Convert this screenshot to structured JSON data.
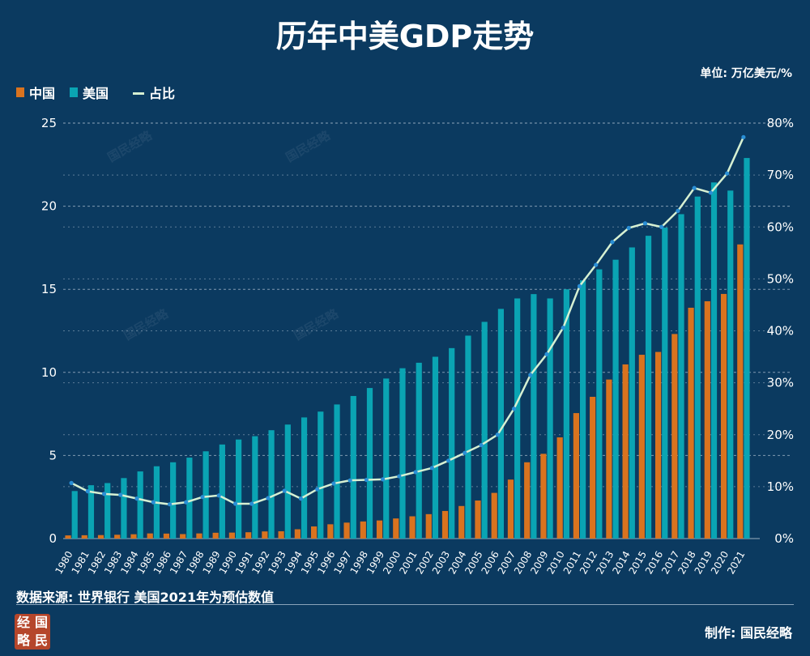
{
  "title": "历年中美GDP走势",
  "unit": "单位: 万亿美元/%",
  "legend": {
    "china": "中国",
    "usa": "美国",
    "ratio": "占比"
  },
  "source": "数据来源: 世界银行  美国2021年为预估数值",
  "maker": "制作: 国民经略",
  "logo_chars": [
    "经",
    "国",
    "略",
    "民"
  ],
  "watermark": "国民经略",
  "colors": {
    "background": "#0b3a60",
    "china": "#d9731f",
    "usa": "#0aa4b3",
    "ratio": "#d6f0d2",
    "ratio_marker": "#2a8fd6",
    "grid": "#9fb4c6"
  },
  "chart_data": {
    "type": "bar",
    "title": "历年中美GDP走势",
    "categories": [
      "1980",
      "1981",
      "1982",
      "1983",
      "1984",
      "1985",
      "1986",
      "1987",
      "1988",
      "1989",
      "1990",
      "1991",
      "1992",
      "1993",
      "1994",
      "1995",
      "1996",
      "1997",
      "1998",
      "1999",
      "2000",
      "2001",
      "2002",
      "2003",
      "2004",
      "2005",
      "2006",
      "2007",
      "2008",
      "2009",
      "2010",
      "2011",
      "2012",
      "2013",
      "2014",
      "2015",
      "2016",
      "2017",
      "2018",
      "2019",
      "2020",
      "2021"
    ],
    "series": [
      {
        "name": "中国",
        "type": "bar",
        "axis": "left",
        "values": [
          0.19,
          0.2,
          0.21,
          0.23,
          0.26,
          0.31,
          0.3,
          0.27,
          0.31,
          0.35,
          0.36,
          0.38,
          0.43,
          0.44,
          0.56,
          0.73,
          0.86,
          0.96,
          1.03,
          1.09,
          1.21,
          1.34,
          1.47,
          1.66,
          1.96,
          2.29,
          2.75,
          3.55,
          4.59,
          5.1,
          6.09,
          7.55,
          8.53,
          9.57,
          10.48,
          11.06,
          11.23,
          12.31,
          13.89,
          14.28,
          14.72,
          17.7
        ]
      },
      {
        "name": "美国",
        "type": "bar",
        "axis": "left",
        "values": [
          2.86,
          3.21,
          3.34,
          3.64,
          4.04,
          4.35,
          4.59,
          4.87,
          5.25,
          5.66,
          5.96,
          6.16,
          6.52,
          6.86,
          7.29,
          7.64,
          8.07,
          8.58,
          9.06,
          9.63,
          10.25,
          10.58,
          10.94,
          11.46,
          12.21,
          13.04,
          13.82,
          14.45,
          14.71,
          14.45,
          15.0,
          15.54,
          16.2,
          16.78,
          17.52,
          18.22,
          18.71,
          19.52,
          20.58,
          21.43,
          20.94,
          22.9
        ]
      },
      {
        "name": "占比",
        "type": "line",
        "axis": "right",
        "values": [
          10.7,
          9.1,
          8.6,
          8.4,
          7.7,
          7.0,
          6.6,
          7.0,
          8.0,
          8.3,
          6.7,
          6.7,
          7.8,
          9.2,
          7.7,
          9.5,
          10.6,
          11.2,
          11.3,
          11.4,
          12.0,
          12.8,
          13.6,
          15.0,
          16.5,
          18.0,
          20.0,
          25.0,
          31.5,
          35.5,
          40.6,
          48.6,
          52.7,
          57.1,
          59.8,
          60.7,
          60.0,
          63.1,
          67.5,
          66.6,
          70.3,
          77.3
        ]
      }
    ],
    "y_left": {
      "min": 0,
      "max": 25,
      "ticks": [
        "0",
        "5",
        "10",
        "15",
        "20",
        "25"
      ]
    },
    "y_right": {
      "min": 0,
      "max": 80,
      "ticks": [
        "0%",
        "10%",
        "20%",
        "30%",
        "40%",
        "50%",
        "60%",
        "70%",
        "80%"
      ]
    },
    "grid": true,
    "legend_position": "top-left"
  }
}
